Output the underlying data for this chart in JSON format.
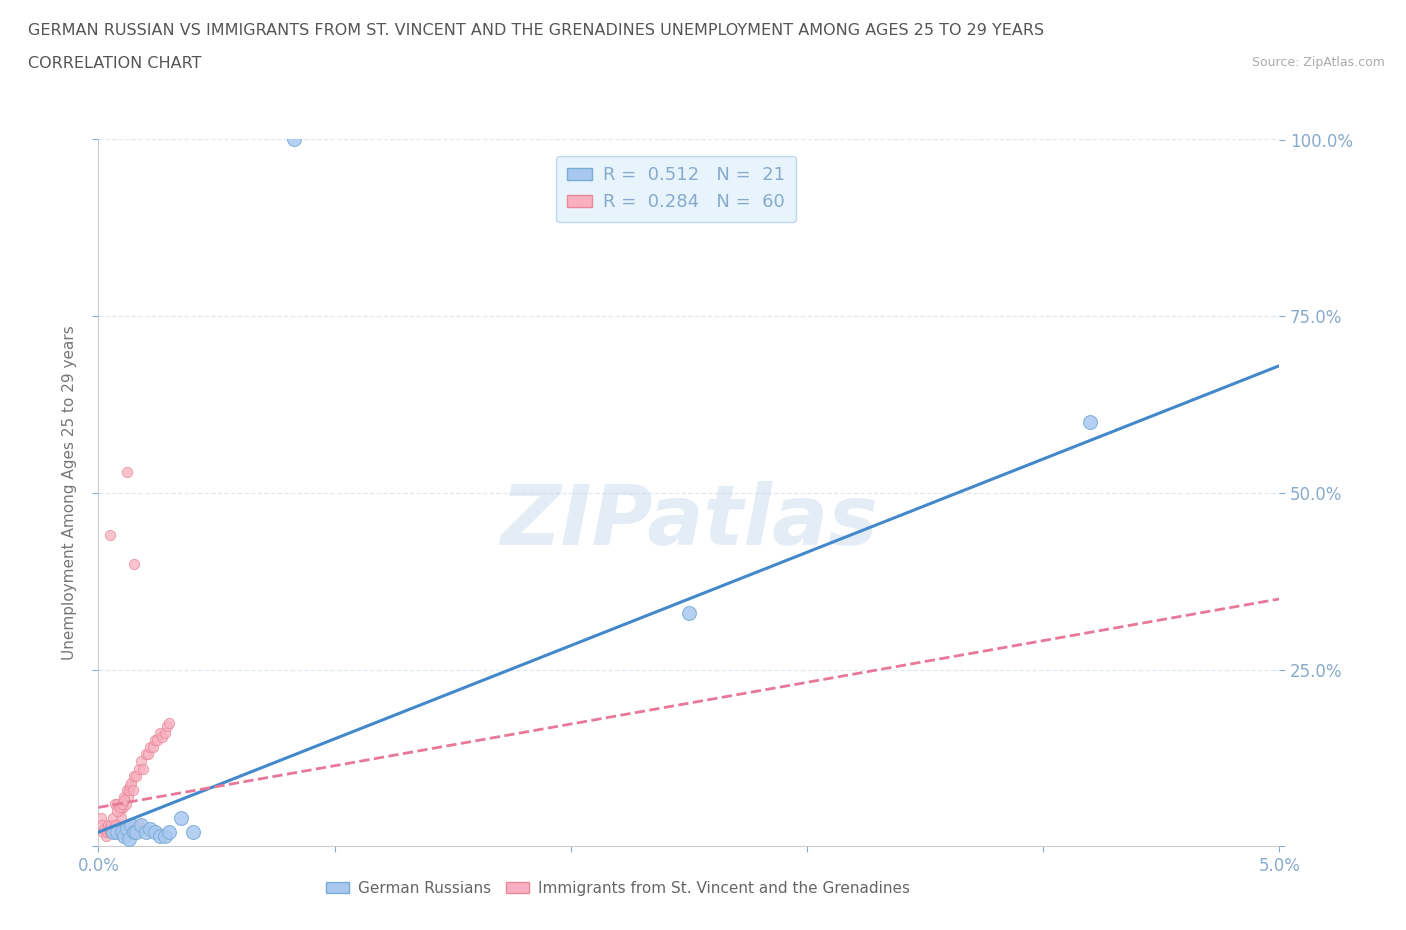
{
  "title_line1": "GERMAN RUSSIAN VS IMMIGRANTS FROM ST. VINCENT AND THE GRENADINES UNEMPLOYMENT AMONG AGES 25 TO 29 YEARS",
  "title_line2": "CORRELATION CHART",
  "source": "Source: ZipAtlas.com",
  "ylabel": "Unemployment Among Ages 25 to 29 years",
  "xlim": [
    0.0,
    0.05
  ],
  "ylim": [
    0.0,
    1.0
  ],
  "xtick_positions": [
    0.0,
    0.01,
    0.02,
    0.03,
    0.04,
    0.05
  ],
  "xticklabels": [
    "0.0%",
    "",
    "",
    "",
    "",
    "5.0%"
  ],
  "ytick_positions": [
    0.0,
    0.25,
    0.5,
    0.75,
    1.0
  ],
  "yticklabels_right": [
    "",
    "25.0%",
    "50.0%",
    "75.0%",
    "100.0%"
  ],
  "blue_scatter": {
    "x": [
      0.0006,
      0.0008,
      0.001,
      0.0011,
      0.0012,
      0.0013,
      0.0014,
      0.0015,
      0.0016,
      0.0018,
      0.002,
      0.0022,
      0.0024,
      0.0026,
      0.0028,
      0.003,
      0.0035,
      0.004,
      0.025,
      0.042,
      0.0083
    ],
    "y": [
      0.02,
      0.02,
      0.02,
      0.015,
      0.025,
      0.01,
      0.03,
      0.02,
      0.02,
      0.03,
      0.02,
      0.025,
      0.02,
      0.015,
      0.015,
      0.02,
      0.04,
      0.02,
      0.33,
      0.6,
      1.0
    ],
    "color": "#a8c8f0",
    "edgecolor": "#7aadd4",
    "size": 100,
    "alpha": 0.85,
    "label": "German Russians",
    "R": 0.512,
    "N": 21
  },
  "pink_scatter": {
    "x": [
      0.0001,
      0.00015,
      0.0002,
      0.00025,
      0.0003,
      0.00035,
      0.0004,
      0.00045,
      0.0005,
      0.00055,
      0.0006,
      0.00065,
      0.0007,
      0.00075,
      0.0008,
      0.00085,
      0.0009,
      0.00095,
      0.001,
      0.00105,
      0.0011,
      0.00115,
      0.0012,
      0.00125,
      0.0013,
      0.00135,
      0.0014,
      0.00145,
      0.0015,
      0.0016,
      0.0017,
      0.0018,
      0.0019,
      0.002,
      0.0021,
      0.0022,
      0.0023,
      0.0024,
      0.0025,
      0.0026,
      0.0027,
      0.0028,
      0.0029,
      0.003,
      0.0005,
      0.0006,
      0.0007,
      0.0008,
      0.0009,
      0.001,
      0.0011,
      0.0012,
      0.0013,
      0.0014,
      0.0015,
      0.0016,
      0.0017,
      0.0005,
      0.0012,
      0.0015
    ],
    "y": [
      0.04,
      0.03,
      0.02,
      0.025,
      0.015,
      0.02,
      0.03,
      0.025,
      0.02,
      0.03,
      0.04,
      0.025,
      0.06,
      0.025,
      0.06,
      0.03,
      0.05,
      0.04,
      0.06,
      0.055,
      0.07,
      0.06,
      0.08,
      0.07,
      0.08,
      0.085,
      0.09,
      0.08,
      0.1,
      0.1,
      0.11,
      0.12,
      0.11,
      0.13,
      0.13,
      0.14,
      0.14,
      0.15,
      0.15,
      0.16,
      0.155,
      0.16,
      0.17,
      0.175,
      0.02,
      0.02,
      0.03,
      0.05,
      0.055,
      0.06,
      0.065,
      0.02,
      0.03,
      0.025,
      0.02,
      0.025,
      0.03,
      0.44,
      0.53,
      0.4
    ],
    "color": "#f8b0c0",
    "edgecolor": "#e88898",
    "size": 55,
    "alpha": 0.75,
    "label": "Immigrants from St. Vincent and the Grenadines",
    "R": 0.284,
    "N": 60
  },
  "blue_line": {
    "x0": 0.0,
    "y0": 0.02,
    "x1": 0.05,
    "y1": 0.68,
    "color": "#4488cc",
    "lw": 2.2
  },
  "pink_line": {
    "x0": 0.0,
    "y0": 0.055,
    "x1": 0.05,
    "y1": 0.35,
    "color": "#e87898",
    "lw": 2.0,
    "ls": "--"
  },
  "watermark": "ZIPatlas",
  "legend_box_color": "#e8f4fc",
  "legend_border_color": "#c0d8ee",
  "title_color": "#555555",
  "axis_label_color": "#777777",
  "tick_color": "#88aacc",
  "grid_color": "#dde8f0",
  "background_color": "#ffffff"
}
